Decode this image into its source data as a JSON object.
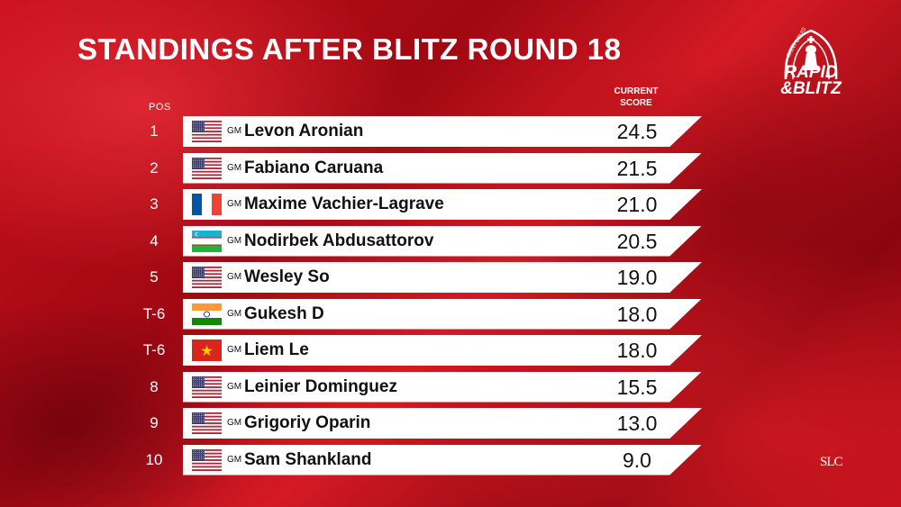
{
  "header": {
    "title": "STANDINGS AFTER BLITZ ROUND 18",
    "pos_label": "POS",
    "score_label_line1": "CURRENT",
    "score_label_line2": "SCORE"
  },
  "logo": {
    "text_top": "SAINT LOUIS",
    "text_line1": "RAPID",
    "text_line2": "&BLITZ",
    "corner_mark": "SLC"
  },
  "standings": [
    {
      "pos": "1",
      "flag": "us-flag",
      "title": "GM",
      "name": "Levon Aronian",
      "score": "24.5"
    },
    {
      "pos": "2",
      "flag": "us-flag",
      "title": "GM",
      "name": "Fabiano Caruana",
      "score": "21.5"
    },
    {
      "pos": "3",
      "flag": "france-flag",
      "title": "GM",
      "name": "Maxime Vachier-Lagrave",
      "score": "21.0"
    },
    {
      "pos": "4",
      "flag": "uzbekistan-flag",
      "title": "GM",
      "name": "Nodirbek Abdusattorov",
      "score": "20.5"
    },
    {
      "pos": "5",
      "flag": "us-flag",
      "title": "GM",
      "name": "Wesley So",
      "score": "19.0"
    },
    {
      "pos": "T-6",
      "flag": "india-flag",
      "title": "GM",
      "name": "Gukesh D",
      "score": "18.0"
    },
    {
      "pos": "T-6",
      "flag": "vietnam-flag",
      "title": "GM",
      "name": "Liem Le",
      "score": "18.0"
    },
    {
      "pos": "8",
      "flag": "us-flag",
      "title": "GM",
      "name": "Leinier Dominguez",
      "score": "15.5"
    },
    {
      "pos": "9",
      "flag": "us-flag",
      "title": "GM",
      "name": "Grigoriy Oparin",
      "score": "13.0"
    },
    {
      "pos": "10",
      "flag": "us-flag",
      "title": "GM",
      "name": "Sam Shankland",
      "score": "9.0"
    }
  ],
  "colors": {
    "background": "#b80e18",
    "bar": "#ffffff",
    "text_dark": "#111111"
  }
}
